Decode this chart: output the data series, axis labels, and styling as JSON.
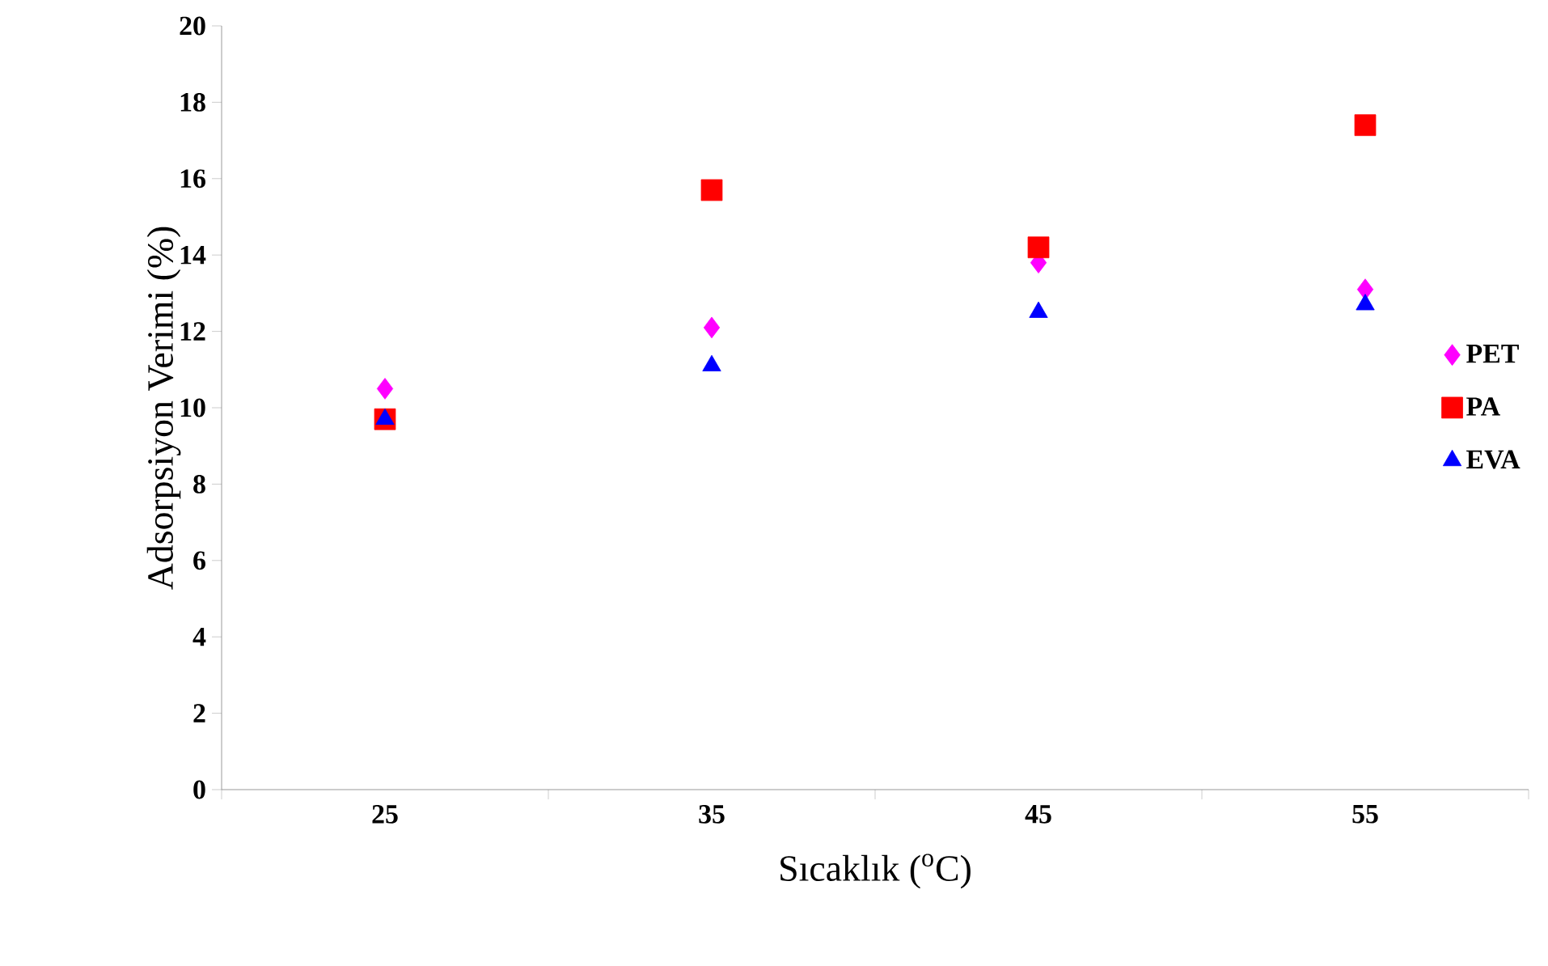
{
  "chart_data": {
    "type": "scatter",
    "xlabel": "Sıcaklık ($^{o}$C)",
    "ylabel": "Adsorpsiyon Verimi (%)",
    "categories": [
      "25",
      "35",
      "45",
      "55"
    ],
    "ylim": [
      0,
      20
    ],
    "yticks": [
      0,
      2,
      4,
      6,
      8,
      10,
      12,
      14,
      16,
      18,
      20
    ],
    "legend": "right",
    "grid": false,
    "series": [
      {
        "name": "PET",
        "color": "#ff00ff",
        "marker": "diamond",
        "values": [
          10.5,
          12.1,
          13.8,
          13.1
        ]
      },
      {
        "name": "PA",
        "color": "#ff0000",
        "marker": "square",
        "values": [
          9.7,
          15.7,
          14.2,
          17.4
        ]
      },
      {
        "name": "EVA",
        "color": "#0000ff",
        "marker": "triangle",
        "values": [
          9.7,
          11.1,
          12.5,
          12.7
        ]
      }
    ]
  }
}
